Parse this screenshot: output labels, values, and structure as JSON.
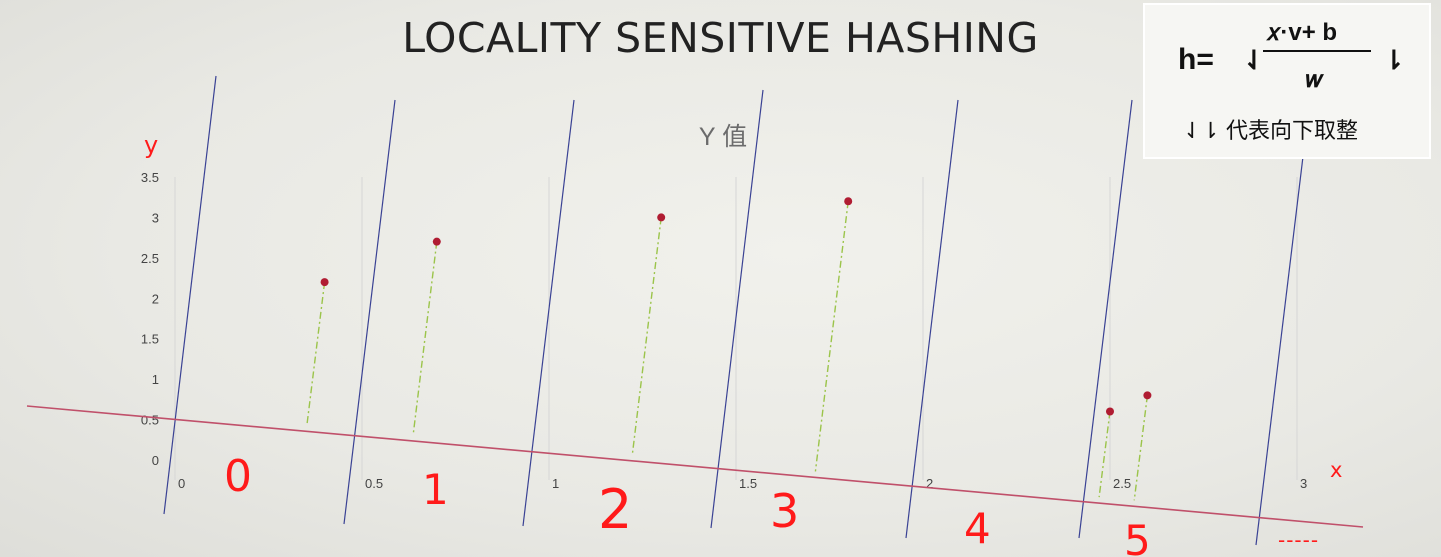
{
  "slide": {
    "title": "LOCALITY SENSITIVE HASHING"
  },
  "formula": {
    "lhs": "h=",
    "floor_open": "⇃",
    "numerator": "𝑥·v+ b",
    "denominator": "𝑤",
    "floor_close": "⇂",
    "note": "⇃⇂ 代表向下取整"
  },
  "annotations": {
    "y_axis_label": "y",
    "x_axis_label": "x",
    "bucket_labels": [
      "0",
      "1",
      "2",
      "3",
      "4",
      "5"
    ],
    "ellipsis": "-----"
  },
  "colors": {
    "points": "#b01c32",
    "projection_lines": "#9bc44a",
    "projection_axis": "#c0506a",
    "bucket_lines": "#3a4294",
    "annotation_red": "#ff1a1a",
    "gridlines": "#d6d6d6"
  },
  "chart_data": {
    "type": "scatter",
    "title": "Y 值",
    "xlabel": "",
    "ylabel": "",
    "xlim": [
      0,
      3
    ],
    "ylim": [
      0,
      3.5
    ],
    "x_ticks": [
      0,
      0.5,
      1,
      1.5,
      2,
      2.5,
      3
    ],
    "x_tick_labels": [
      "0",
      "0.5",
      "1",
      "1.5",
      "2",
      "2.5",
      "3"
    ],
    "y_ticks": [
      0,
      0.5,
      1,
      1.5,
      2,
      2.5,
      3,
      3.5
    ],
    "y_tick_labels": [
      "0",
      "0.5",
      "1",
      "1.5",
      "2",
      "2.5",
      "3",
      "3.5"
    ],
    "grid": "vertical",
    "series": [
      {
        "points": [
          {
            "x": 0.4,
            "y": 2.2
          },
          {
            "x": 0.7,
            "y": 2.7
          },
          {
            "x": 1.3,
            "y": 3.0
          },
          {
            "x": 1.8,
            "y": 3.2
          },
          {
            "x": 2.5,
            "y": 0.6
          },
          {
            "x": 2.6,
            "y": 0.8
          }
        ]
      }
    ]
  }
}
